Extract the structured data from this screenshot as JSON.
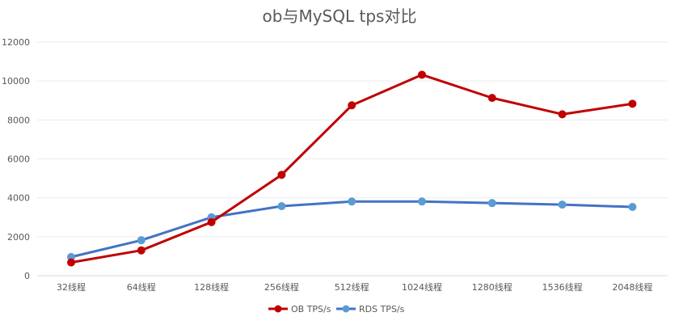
{
  "chart_data": {
    "type": "line",
    "title": "ob与MySQL tps对比",
    "xlabel": "",
    "ylabel": "",
    "ylim": [
      0,
      12000
    ],
    "yticks": [
      0,
      2000,
      4000,
      6000,
      8000,
      10000,
      12000
    ],
    "grid": true,
    "legend_position": "bottom",
    "categories": [
      "32线程",
      "64线程",
      "128线程",
      "256线程",
      "512线程",
      "1024线程",
      "1280线程",
      "1536线程",
      "2048线程"
    ],
    "series": [
      {
        "name": "OB TPS/s",
        "color": "#c00000",
        "marker_color": "#c00000",
        "values": [
          680,
          1300,
          2750,
          5180,
          8750,
          10320,
          9130,
          8290,
          8830
        ]
      },
      {
        "name": "RDS TPS/s",
        "color": "#4472c4",
        "marker_color": "#5b9bd5",
        "values": [
          960,
          1820,
          3000,
          3570,
          3810,
          3810,
          3730,
          3650,
          3530
        ]
      }
    ]
  }
}
